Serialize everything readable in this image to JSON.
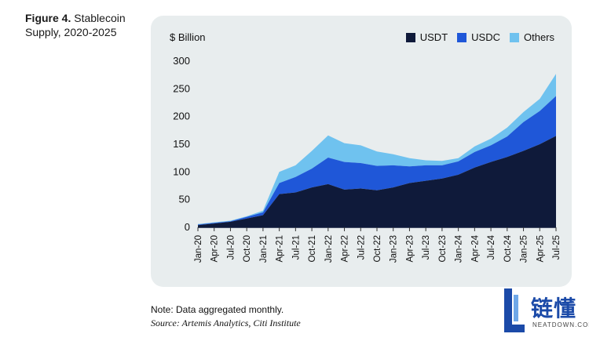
{
  "figure": {
    "label": "Figure 4.",
    "title_line1": "Stablecoin",
    "title_line2": "Supply, 2020-2025"
  },
  "note": "Note: Data aggregated monthly.",
  "source": "Source: Artemis Analytics, Citi Institute",
  "watermark": {
    "text": "链懂",
    "domain": "NEATDOWN.COM",
    "icon": "watermark-logo"
  },
  "colors": {
    "panel": "#e8edee",
    "usdt": "#0f1a3a",
    "usdc": "#1f57d8",
    "others": "#6fc2ef"
  },
  "chart_data": {
    "type": "area",
    "stacked": true,
    "ylabel": "$ Billion",
    "ylim": [
      0,
      300
    ],
    "yticks": [
      0,
      50,
      100,
      150,
      200,
      250,
      300
    ],
    "grid": false,
    "legend_position": "top-right",
    "x": [
      "2020-01",
      "2020-04",
      "2020-07",
      "2020-10",
      "2021-01",
      "2021-04",
      "2021-07",
      "2021-10",
      "2022-01",
      "2022-04",
      "2022-07",
      "2022-10",
      "2023-01",
      "2023-04",
      "2023-07",
      "2023-10",
      "2024-01",
      "2024-04",
      "2024-07",
      "2024-10",
      "2025-01",
      "2025-04",
      "2025-07"
    ],
    "xtick_labels": [
      "Jan-20",
      "Apr-20",
      "Jul-20",
      "Oct-20",
      "Jan-21",
      "Apr-21",
      "Jul-21",
      "Oct-21",
      "Jan-22",
      "Apr-22",
      "Jul-22",
      "Oct-22",
      "Jan-23",
      "Apr-23",
      "Jul-23",
      "Oct-23",
      "Jan-24",
      "Apr-24",
      "Jul-24",
      "Oct-24",
      "Jan-25",
      "Apr-25",
      "Jul-25"
    ],
    "series": [
      {
        "name": "USDT",
        "color": "#0f1a3a",
        "values": [
          4,
          7,
          10,
          16,
          22,
          60,
          63,
          72,
          78,
          68,
          70,
          67,
          72,
          80,
          84,
          88,
          95,
          108,
          118,
          127,
          138,
          150,
          165
        ]
      },
      {
        "name": "USDC",
        "color": "#1f57d8",
        "values": [
          1,
          1,
          1,
          3,
          5,
          20,
          28,
          34,
          48,
          50,
          46,
          44,
          40,
          30,
          28,
          24,
          24,
          28,
          30,
          37,
          52,
          60,
          72
        ]
      },
      {
        "name": "Others",
        "color": "#6fc2ef",
        "values": [
          1,
          1,
          1,
          1,
          3,
          20,
          21,
          32,
          40,
          34,
          32,
          26,
          20,
          15,
          9,
          8,
          6,
          10,
          12,
          16,
          18,
          22,
          40
        ]
      }
    ]
  }
}
